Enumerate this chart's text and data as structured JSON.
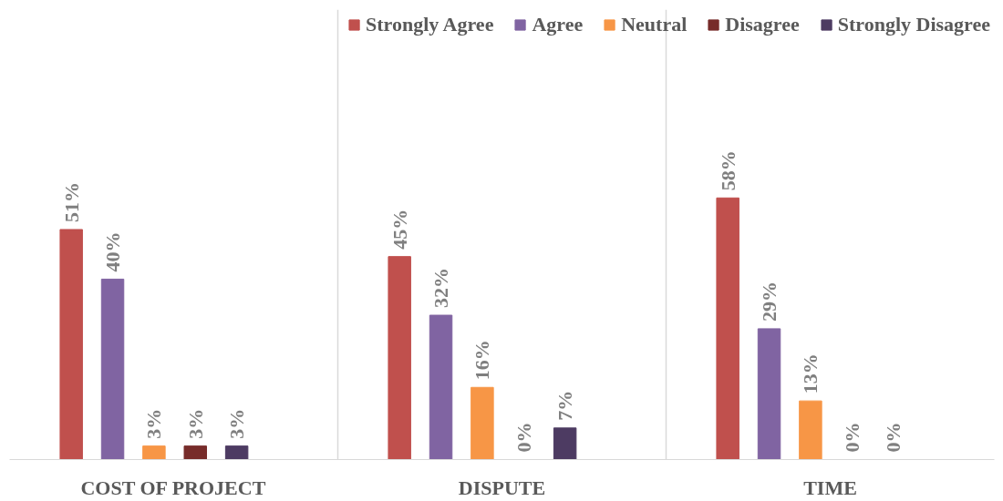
{
  "chart_data": {
    "type": "bar",
    "categories": [
      "COST OF PROJECT",
      "DISPUTE",
      "TIME"
    ],
    "series": [
      {
        "name": "Strongly Agree",
        "color": "#c0504d",
        "values": [
          51,
          45,
          58
        ],
        "value_labels": [
          "51%",
          "45%",
          "58%"
        ]
      },
      {
        "name": "Agree",
        "color": "#8064a2",
        "values": [
          40,
          32,
          29
        ],
        "value_labels": [
          "40%",
          "32%",
          "29%"
        ]
      },
      {
        "name": "Neutral",
        "color": "#f79646",
        "values": [
          3,
          16,
          13
        ],
        "value_labels": [
          "3%",
          "16%",
          "13%"
        ]
      },
      {
        "name": "Disagree",
        "color": "#772c2a",
        "values": [
          3,
          0,
          0
        ],
        "value_labels": [
          "3%",
          "0%",
          "0%"
        ]
      },
      {
        "name": "Strongly Disagree",
        "color": "#4d3b62",
        "values": [
          3,
          7,
          0
        ],
        "value_labels": [
          "3%",
          "7%",
          "0%"
        ]
      }
    ],
    "grid": "x",
    "legend": "top",
    "tick_labels": "x"
  }
}
